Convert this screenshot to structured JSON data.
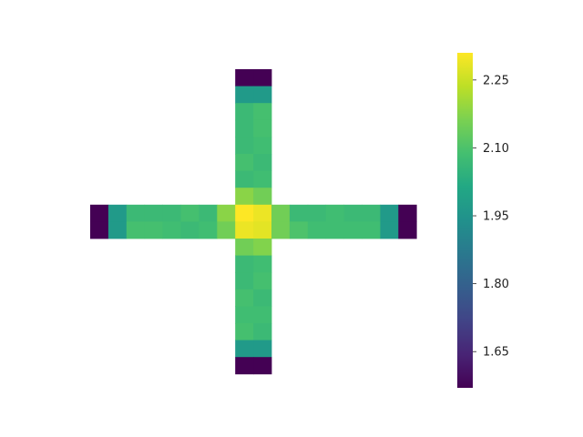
{
  "chart_data": {
    "type": "heatmap",
    "title": "",
    "xlabel": "",
    "ylabel": "",
    "colormap": "viridis",
    "vmin": 1.57,
    "vmax": 2.31,
    "colorbar": {
      "ticks": [
        1.65,
        1.8,
        1.95,
        2.1,
        2.25
      ],
      "tick_labels": [
        "1.65",
        "1.80",
        "1.95",
        "2.10",
        "2.25"
      ]
    },
    "cells": [
      {
        "row": 0,
        "col": 8,
        "value": 1.57
      },
      {
        "row": 0,
        "col": 9,
        "value": 1.57
      },
      {
        "row": 1,
        "col": 8,
        "value": 1.97
      },
      {
        "row": 1,
        "col": 9,
        "value": 1.97
      },
      {
        "row": 2,
        "col": 8,
        "value": 2.07
      },
      {
        "row": 2,
        "col": 9,
        "value": 2.09
      },
      {
        "row": 3,
        "col": 8,
        "value": 2.07
      },
      {
        "row": 3,
        "col": 9,
        "value": 2.09
      },
      {
        "row": 4,
        "col": 8,
        "value": 2.07
      },
      {
        "row": 4,
        "col": 9,
        "value": 2.08
      },
      {
        "row": 5,
        "col": 8,
        "value": 2.09
      },
      {
        "row": 5,
        "col": 9,
        "value": 2.07
      },
      {
        "row": 6,
        "col": 8,
        "value": 2.07
      },
      {
        "row": 6,
        "col": 9,
        "value": 2.08
      },
      {
        "row": 7,
        "col": 8,
        "value": 2.18
      },
      {
        "row": 7,
        "col": 9,
        "value": 2.15
      },
      {
        "row": 8,
        "col": 0,
        "value": 1.57
      },
      {
        "row": 8,
        "col": 1,
        "value": 1.97
      },
      {
        "row": 8,
        "col": 2,
        "value": 2.07
      },
      {
        "row": 8,
        "col": 3,
        "value": 2.07
      },
      {
        "row": 8,
        "col": 4,
        "value": 2.07
      },
      {
        "row": 8,
        "col": 5,
        "value": 2.09
      },
      {
        "row": 8,
        "col": 6,
        "value": 2.07
      },
      {
        "row": 8,
        "col": 7,
        "value": 2.18
      },
      {
        "row": 8,
        "col": 8,
        "value": 2.31
      },
      {
        "row": 8,
        "col": 9,
        "value": 2.29
      },
      {
        "row": 8,
        "col": 10,
        "value": 2.15
      },
      {
        "row": 8,
        "col": 11,
        "value": 2.07
      },
      {
        "row": 8,
        "col": 12,
        "value": 2.07
      },
      {
        "row": 8,
        "col": 13,
        "value": 2.08
      },
      {
        "row": 8,
        "col": 14,
        "value": 2.07
      },
      {
        "row": 8,
        "col": 15,
        "value": 2.07
      },
      {
        "row": 8,
        "col": 16,
        "value": 1.97
      },
      {
        "row": 8,
        "col": 17,
        "value": 1.57
      },
      {
        "row": 9,
        "col": 0,
        "value": 1.57
      },
      {
        "row": 9,
        "col": 1,
        "value": 1.97
      },
      {
        "row": 9,
        "col": 2,
        "value": 2.09
      },
      {
        "row": 9,
        "col": 3,
        "value": 2.09
      },
      {
        "row": 9,
        "col": 4,
        "value": 2.08
      },
      {
        "row": 9,
        "col": 5,
        "value": 2.07
      },
      {
        "row": 9,
        "col": 6,
        "value": 2.08
      },
      {
        "row": 9,
        "col": 7,
        "value": 2.15
      },
      {
        "row": 9,
        "col": 8,
        "value": 2.29
      },
      {
        "row": 9,
        "col": 9,
        "value": 2.28
      },
      {
        "row": 9,
        "col": 10,
        "value": 2.15
      },
      {
        "row": 9,
        "col": 11,
        "value": 2.1
      },
      {
        "row": 9,
        "col": 12,
        "value": 2.08
      },
      {
        "row": 9,
        "col": 13,
        "value": 2.08
      },
      {
        "row": 9,
        "col": 14,
        "value": 2.08
      },
      {
        "row": 9,
        "col": 15,
        "value": 2.08
      },
      {
        "row": 9,
        "col": 16,
        "value": 1.97
      },
      {
        "row": 9,
        "col": 17,
        "value": 1.57
      },
      {
        "row": 10,
        "col": 8,
        "value": 2.15
      },
      {
        "row": 10,
        "col": 9,
        "value": 2.17
      },
      {
        "row": 11,
        "col": 8,
        "value": 2.07
      },
      {
        "row": 11,
        "col": 9,
        "value": 2.08
      },
      {
        "row": 12,
        "col": 8,
        "value": 2.07
      },
      {
        "row": 12,
        "col": 9,
        "value": 2.09
      },
      {
        "row": 13,
        "col": 8,
        "value": 2.09
      },
      {
        "row": 13,
        "col": 9,
        "value": 2.07
      },
      {
        "row": 14,
        "col": 8,
        "value": 2.08
      },
      {
        "row": 14,
        "col": 9,
        "value": 2.08
      },
      {
        "row": 15,
        "col": 8,
        "value": 2.09
      },
      {
        "row": 15,
        "col": 9,
        "value": 2.07
      },
      {
        "row": 16,
        "col": 8,
        "value": 1.97
      },
      {
        "row": 16,
        "col": 9,
        "value": 1.97
      },
      {
        "row": 17,
        "col": 8,
        "value": 1.57
      },
      {
        "row": 17,
        "col": 9,
        "value": 1.57
      }
    ]
  }
}
